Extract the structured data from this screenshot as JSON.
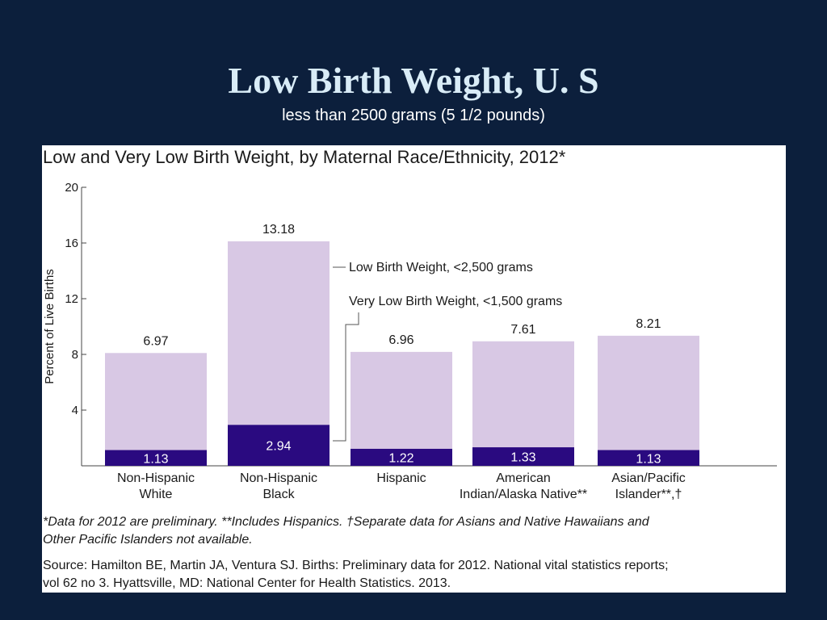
{
  "slide": {
    "title": "Low Birth Weight, U. S",
    "subtitle": "less than 2500 grams (5 1/2 pounds)"
  },
  "colors": {
    "background": "#0c1f3c",
    "title": "#d9ecf7",
    "low_birth_weight": "#d8c8e4",
    "very_low_birth_weight": "#2a0a80"
  },
  "chart_data": {
    "type": "bar",
    "title": "Low and Very Low Birth Weight, by Maternal Race/Ethnicity, 2012*",
    "ylabel": "Percent of Live Births",
    "ylim": [
      0,
      20
    ],
    "yticks": [
      4,
      8,
      12,
      16,
      20
    ],
    "ytick_labels": [
      "4",
      "8",
      "12",
      "16",
      "20"
    ],
    "categories": [
      [
        "Non-Hispanic",
        "White"
      ],
      [
        "Non-Hispanic",
        "Black"
      ],
      [
        "Hispanic"
      ],
      [
        "American",
        "Indian/Alaska Native**"
      ],
      [
        "Asian/Pacific",
        "Islander**,†"
      ]
    ],
    "series": [
      {
        "name": "Very Low Birth Weight, <1,500 grams",
        "values": [
          1.13,
          2.94,
          1.22,
          1.33,
          1.13
        ],
        "labels": [
          "1.13",
          "2.94",
          "1.22",
          "1.33",
          "1.13"
        ]
      },
      {
        "name": "Low Birth Weight, <2,500 grams",
        "values": [
          6.97,
          13.18,
          6.96,
          7.61,
          8.21
        ],
        "labels": [
          "6.97",
          "13.18",
          "6.96",
          "7.61",
          "8.21"
        ]
      }
    ],
    "stacked": true,
    "legend_position": "annotated on bars",
    "grid": false,
    "footnote": [
      "*Data for 2012 are preliminary. **Includes Hispanics. †Separate data for Asians and Native Hawaiians and",
      "Other Pacific Islanders not available."
    ],
    "source": [
      "Source: Hamilton BE, Martin JA, Ventura SJ. Births: Preliminary data for 2012. National vital statistics reports;",
      "vol 62 no 3. Hyattsville, MD: National Center for Health Statistics. 2013."
    ]
  }
}
